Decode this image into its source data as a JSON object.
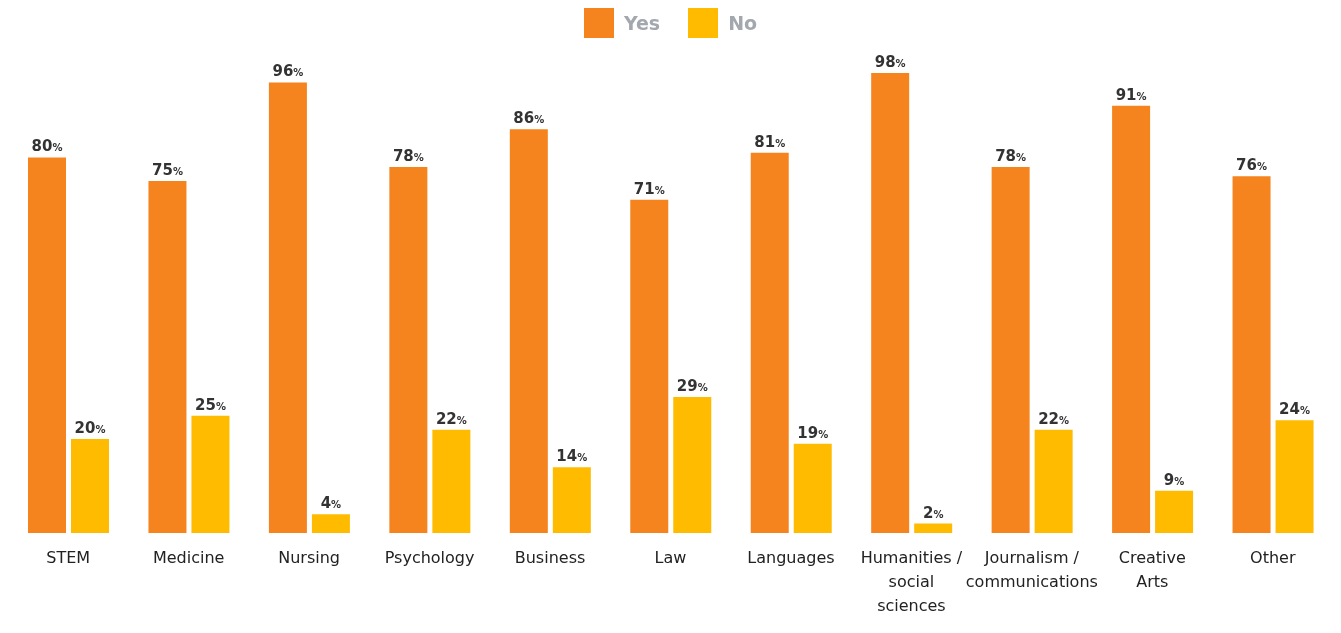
{
  "chart_data": {
    "type": "bar",
    "categories": [
      "STEM",
      "Medicine",
      "Nursing",
      "Psychology",
      "Business",
      "Law",
      "Languages",
      "Humanities / social sciences",
      "Journalism / communications",
      "Creative Arts",
      "Other"
    ],
    "series": [
      {
        "name": "Yes",
        "color": "#f5841f",
        "values": [
          80,
          75,
          96,
          78,
          86,
          71,
          81,
          98,
          78,
          91,
          76
        ],
        "value_labels": [
          "80%",
          "75%",
          "96%",
          "78%",
          "86%",
          "71%",
          "81%",
          "98%",
          "78%",
          "91%",
          "76%"
        ]
      },
      {
        "name": "No",
        "color": "#ffbb00",
        "values": [
          20,
          25,
          4,
          22,
          14,
          29,
          19,
          2,
          22,
          9,
          24
        ],
        "value_labels": [
          "20%",
          "25%",
          "4%",
          "22%",
          "14%",
          "29%",
          "19%",
          "2%",
          "22%",
          "9%",
          "24%"
        ]
      }
    ],
    "legend": "top"
  }
}
